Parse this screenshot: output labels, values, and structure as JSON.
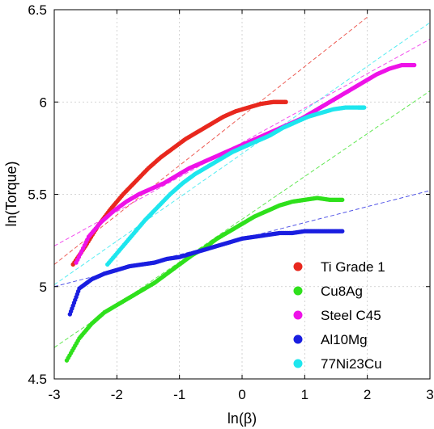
{
  "chart_data": {
    "type": "scatter",
    "xlabel": "ln(β)",
    "ylabel": "ln(Torque)",
    "xlim": [
      -3,
      3
    ],
    "ylim": [
      4.5,
      6.5
    ],
    "xticks": [
      -3,
      -2,
      -1,
      0,
      1,
      2,
      3
    ],
    "yticks": [
      4.5,
      5,
      5.5,
      6,
      6.5
    ],
    "xtick_labels": [
      "-3",
      "-2",
      "-1",
      "0",
      "1",
      "2",
      "3"
    ],
    "ytick_labels": [
      "4.5",
      "5",
      "5.5",
      "6",
      "6.5"
    ],
    "grid": true,
    "legend_position": "bottom-right",
    "series": [
      {
        "name": "Ti Grade 1",
        "color": "#e8281e",
        "points": [
          [
            -2.7,
            5.12
          ],
          [
            -2.5,
            5.22
          ],
          [
            -2.3,
            5.33
          ],
          [
            -2.1,
            5.42
          ],
          [
            -1.9,
            5.5
          ],
          [
            -1.7,
            5.57
          ],
          [
            -1.5,
            5.64
          ],
          [
            -1.3,
            5.7
          ],
          [
            -1.1,
            5.75
          ],
          [
            -0.9,
            5.8
          ],
          [
            -0.7,
            5.84
          ],
          [
            -0.5,
            5.88
          ],
          [
            -0.3,
            5.92
          ],
          [
            -0.1,
            5.95
          ],
          [
            0.1,
            5.97
          ],
          [
            0.3,
            5.99
          ],
          [
            0.5,
            6.0
          ],
          [
            0.7,
            6.0
          ]
        ],
        "fit": [
          [
            -3,
            5.12
          ],
          [
            2,
            6.46
          ]
        ]
      },
      {
        "name": "Cu8Ag",
        "color": "#2fe01c",
        "points": [
          [
            -2.8,
            4.6
          ],
          [
            -2.6,
            4.72
          ],
          [
            -2.4,
            4.8
          ],
          [
            -2.2,
            4.86
          ],
          [
            -2.0,
            4.9
          ],
          [
            -1.8,
            4.94
          ],
          [
            -1.6,
            4.98
          ],
          [
            -1.4,
            5.02
          ],
          [
            -1.2,
            5.07
          ],
          [
            -1.0,
            5.12
          ],
          [
            -0.8,
            5.17
          ],
          [
            -0.6,
            5.21
          ],
          [
            -0.4,
            5.26
          ],
          [
            -0.2,
            5.3
          ],
          [
            0,
            5.34
          ],
          [
            0.2,
            5.38
          ],
          [
            0.4,
            5.41
          ],
          [
            0.6,
            5.44
          ],
          [
            0.8,
            5.46
          ],
          [
            1.0,
            5.47
          ],
          [
            1.2,
            5.48
          ],
          [
            1.4,
            5.47
          ],
          [
            1.6,
            5.47
          ]
        ],
        "fit": [
          [
            -3,
            4.67
          ],
          [
            3,
            6.06
          ]
        ]
      },
      {
        "name": "Steel C45",
        "color": "#ee12e8",
        "points": [
          [
            -2.65,
            5.13
          ],
          [
            -2.45,
            5.27
          ],
          [
            -2.25,
            5.35
          ],
          [
            -2.05,
            5.41
          ],
          [
            -1.85,
            5.46
          ],
          [
            -1.65,
            5.5
          ],
          [
            -1.45,
            5.53
          ],
          [
            -1.25,
            5.56
          ],
          [
            -1.05,
            5.6
          ],
          [
            -0.85,
            5.64
          ],
          [
            -0.65,
            5.67
          ],
          [
            -0.45,
            5.7
          ],
          [
            -0.25,
            5.73
          ],
          [
            -0.05,
            5.76
          ],
          [
            0.15,
            5.79
          ],
          [
            0.35,
            5.82
          ],
          [
            0.55,
            5.85
          ],
          [
            0.75,
            5.88
          ],
          [
            0.95,
            5.91
          ],
          [
            1.15,
            5.95
          ],
          [
            1.35,
            5.99
          ],
          [
            1.55,
            6.03
          ],
          [
            1.75,
            6.07
          ],
          [
            1.95,
            6.11
          ],
          [
            2.15,
            6.15
          ],
          [
            2.35,
            6.18
          ],
          [
            2.55,
            6.2
          ],
          [
            2.75,
            6.2
          ]
        ],
        "fit": [
          [
            -3,
            5.22
          ],
          [
            3,
            6.34
          ]
        ]
      },
      {
        "name": "Al10Mg",
        "color": "#1a1ee0",
        "points": [
          [
            -2.75,
            4.85
          ],
          [
            -2.6,
            4.99
          ],
          [
            -2.4,
            5.04
          ],
          [
            -2.2,
            5.07
          ],
          [
            -2.0,
            5.09
          ],
          [
            -1.8,
            5.11
          ],
          [
            -1.6,
            5.12
          ],
          [
            -1.4,
            5.13
          ],
          [
            -1.2,
            5.15
          ],
          [
            -1.0,
            5.16
          ],
          [
            -0.8,
            5.18
          ],
          [
            -0.6,
            5.2
          ],
          [
            -0.4,
            5.22
          ],
          [
            -0.2,
            5.24
          ],
          [
            0,
            5.26
          ],
          [
            0.2,
            5.27
          ],
          [
            0.4,
            5.28
          ],
          [
            0.6,
            5.29
          ],
          [
            0.8,
            5.29
          ],
          [
            1.0,
            5.3
          ],
          [
            1.2,
            5.3
          ],
          [
            1.4,
            5.3
          ],
          [
            1.6,
            5.3
          ]
        ],
        "fit": [
          [
            -3,
            5.0
          ],
          [
            3,
            5.52
          ]
        ]
      },
      {
        "name": "77Ni23Cu",
        "color": "#1ee6ee",
        "points": [
          [
            -2.15,
            5.12
          ],
          [
            -1.95,
            5.2
          ],
          [
            -1.75,
            5.28
          ],
          [
            -1.55,
            5.36
          ],
          [
            -1.35,
            5.43
          ],
          [
            -1.15,
            5.5
          ],
          [
            -0.95,
            5.56
          ],
          [
            -0.75,
            5.61
          ],
          [
            -0.55,
            5.65
          ],
          [
            -0.35,
            5.69
          ],
          [
            -0.15,
            5.73
          ],
          [
            0.05,
            5.76
          ],
          [
            0.25,
            5.79
          ],
          [
            0.45,
            5.82
          ],
          [
            0.65,
            5.86
          ],
          [
            0.85,
            5.89
          ],
          [
            1.05,
            5.92
          ],
          [
            1.25,
            5.94
          ],
          [
            1.45,
            5.96
          ],
          [
            1.65,
            5.97
          ],
          [
            1.85,
            5.97
          ],
          [
            1.95,
            5.97
          ]
        ],
        "fit": [
          [
            -3,
            5.01
          ],
          [
            3,
            6.43
          ]
        ]
      }
    ]
  }
}
